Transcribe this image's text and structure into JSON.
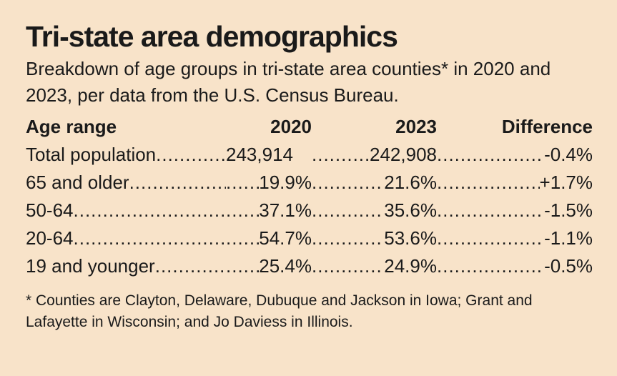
{
  "title": "Tri-state area demographics",
  "subtitle": "Breakdown of age groups in tri-state area counties* in 2020 and 2023, per data from the U.S. Census Bureau.",
  "table": {
    "headers": [
      "Age range",
      "2020",
      "2023",
      "Difference"
    ],
    "rows": [
      {
        "range": "Total population",
        "y2020": "243,914",
        "y2023": "242,908",
        "diff": "-0.4%"
      },
      {
        "range": "65 and older",
        "y2020": "19.9%",
        "y2023": "21.6%",
        "diff": "+1.7%"
      },
      {
        "range": "50-64",
        "y2020": "37.1%",
        "y2023": "35.6%",
        "diff": "-1.5%"
      },
      {
        "range": "20-64",
        "y2020": "54.7%",
        "y2023": "53.6%",
        "diff": "-1.1%"
      },
      {
        "range": "19 and younger",
        "y2020": "25.4%",
        "y2023": "24.9%",
        "diff": "-0.5%"
      }
    ]
  },
  "footnote": "* Counties are Clayton, Delaware, Dubuque and Jackson in Iowa; Grant and Lafayette in Wisconsin; and Jo Daviess in Illinois."
}
